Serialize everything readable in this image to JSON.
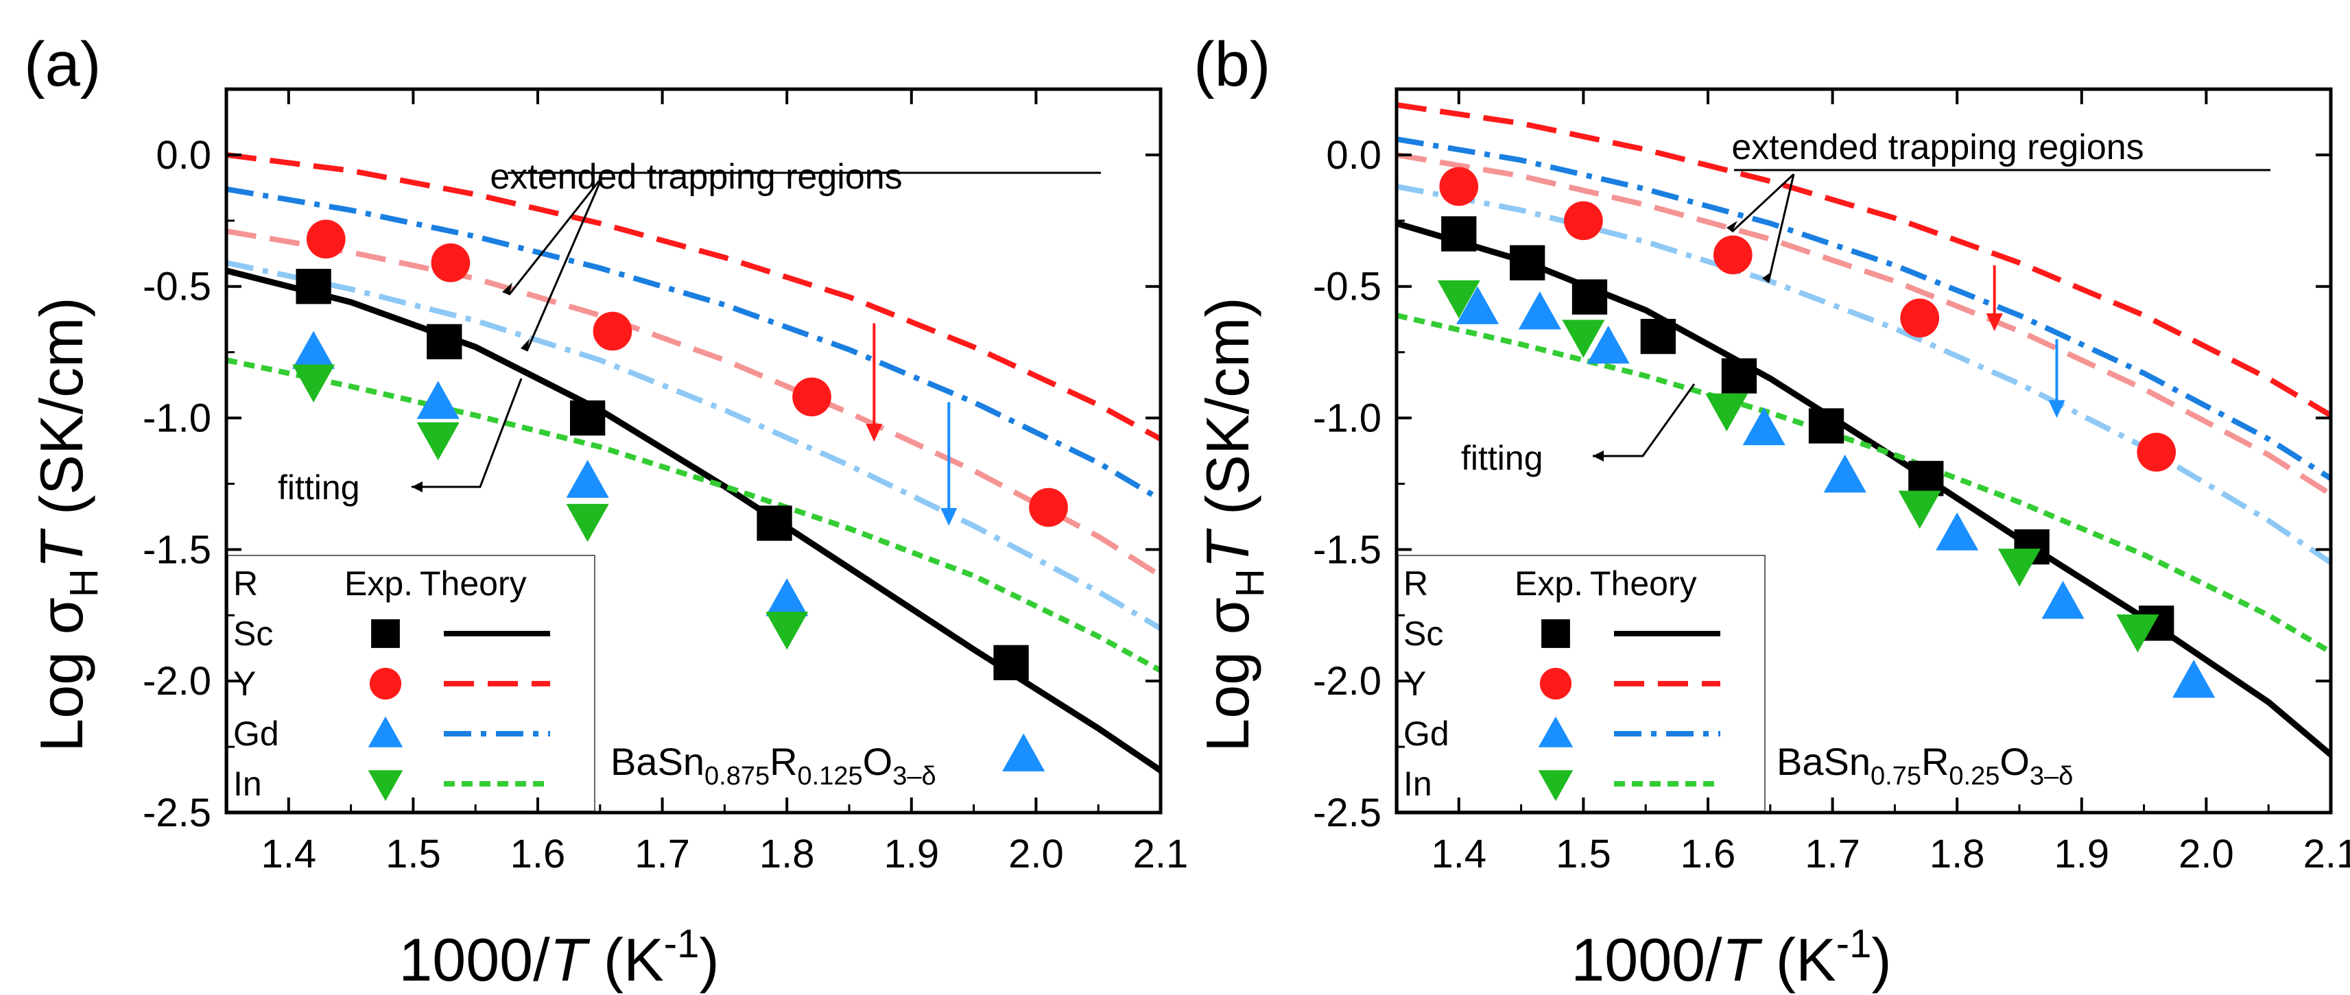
{
  "figure": {
    "ylabel_prefix": "Log σ",
    "ylabel_sub": "H",
    "ylabel_var": "T",
    "ylabel_unit": " (SK/cm)",
    "xlabel_prefix": "1000/",
    "xlabel_var": "T",
    "xlabel_unit": " (K",
    "xlabel_sup": "-1",
    "xlabel_close": ")",
    "legend_header": [
      "R",
      "Exp.",
      "Theory"
    ],
    "arrow_color_Y": "#ff1a1a",
    "arrow_color_Gd": "#1a8fff"
  },
  "chart_data": [
    {
      "type": "scatter",
      "panel_label": "(a)",
      "xlim": [
        1.35,
        2.1
      ],
      "ylim": [
        -2.5,
        0.25
      ],
      "xticks": [
        1.4,
        1.5,
        1.6,
        1.7,
        1.8,
        1.9,
        2.0,
        2.1
      ],
      "xtick_labels": [
        "1.4",
        "1.5",
        "1.6",
        "1.7",
        "1.8",
        "1.9",
        "2.0",
        "2.1"
      ],
      "yticks": [
        0.0,
        -0.5,
        -1.0,
        -1.5,
        -2.0,
        -2.5
      ],
      "ytick_labels": [
        "0.0",
        "-0.5",
        "-1.0",
        "-1.5",
        "-2.0",
        "-2.5"
      ],
      "formula": {
        "base": "BaSn",
        "sub1": "0.875",
        "mid": "R",
        "sub2": "0.125",
        "tail": "O",
        "sub3": "3–δ"
      },
      "annotations": {
        "trap": "extended trapping regions",
        "fit": "fitting"
      },
      "series": [
        {
          "name": "Sc",
          "color": "#000000",
          "marker": "square",
          "exp": [
            [
              1.42,
              -0.5
            ],
            [
              1.525,
              -0.71
            ],
            [
              1.64,
              -1.0
            ],
            [
              1.79,
              -1.4
            ],
            [
              1.98,
              -1.93
            ]
          ],
          "theory": {
            "style": "solid",
            "points": [
              [
                1.35,
                -0.44
              ],
              [
                1.45,
                -0.56
              ],
              [
                1.55,
                -0.73
              ],
              [
                1.65,
                -0.97
              ],
              [
                1.75,
                -1.26
              ],
              [
                1.85,
                -1.57
              ],
              [
                1.95,
                -1.88
              ],
              [
                2.05,
                -2.18
              ],
              [
                2.1,
                -2.34
              ]
            ]
          },
          "trap": {
            "style": "none",
            "points": []
          }
        },
        {
          "name": "Y",
          "color": "#ff1a1a",
          "marker": "circle",
          "exp": [
            [
              1.43,
              -0.32
            ],
            [
              1.53,
              -0.41
            ],
            [
              1.66,
              -0.67
            ],
            [
              1.82,
              -0.92
            ],
            [
              2.01,
              -1.34
            ]
          ],
          "theory": {
            "style": "dash",
            "color": "#ff1a1a",
            "points": [
              [
                1.35,
                0.0
              ],
              [
                1.45,
                -0.06
              ],
              [
                1.55,
                -0.15
              ],
              [
                1.65,
                -0.26
              ],
              [
                1.75,
                -0.39
              ],
              [
                1.85,
                -0.54
              ],
              [
                1.95,
                -0.73
              ],
              [
                2.05,
                -0.95
              ],
              [
                2.1,
                -1.08
              ]
            ]
          },
          "trap": {
            "style": "dash",
            "color": "#f59494",
            "points": [
              [
                1.35,
                -0.29
              ],
              [
                1.45,
                -0.37
              ],
              [
                1.55,
                -0.47
              ],
              [
                1.65,
                -0.61
              ],
              [
                1.75,
                -0.78
              ],
              [
                1.85,
                -0.98
              ],
              [
                1.95,
                -1.2
              ],
              [
                2.05,
                -1.45
              ],
              [
                2.1,
                -1.6
              ]
            ]
          }
        },
        {
          "name": "Gd",
          "color": "#1a8fff",
          "marker": "triangle-up",
          "exp": [
            [
              1.42,
              -0.75
            ],
            [
              1.52,
              -0.94
            ],
            [
              1.64,
              -1.24
            ],
            [
              1.8,
              -1.69
            ],
            [
              1.99,
              -2.28
            ]
          ],
          "theory": {
            "style": "dashdot",
            "color": "#1a7fe0",
            "points": [
              [
                1.35,
                -0.13
              ],
              [
                1.45,
                -0.21
              ],
              [
                1.55,
                -0.31
              ],
              [
                1.65,
                -0.43
              ],
              [
                1.75,
                -0.57
              ],
              [
                1.85,
                -0.74
              ],
              [
                1.95,
                -0.94
              ],
              [
                2.05,
                -1.17
              ],
              [
                2.1,
                -1.31
              ]
            ]
          },
          "trap": {
            "style": "dashdot",
            "color": "#8ec8f5",
            "points": [
              [
                1.35,
                -0.41
              ],
              [
                1.45,
                -0.51
              ],
              [
                1.55,
                -0.63
              ],
              [
                1.65,
                -0.78
              ],
              [
                1.75,
                -0.97
              ],
              [
                1.85,
                -1.18
              ],
              [
                1.95,
                -1.41
              ],
              [
                2.05,
                -1.66
              ],
              [
                2.1,
                -1.8
              ]
            ]
          }
        },
        {
          "name": "In",
          "color": "#1fba1f",
          "marker": "triangle-down",
          "exp": [
            [
              1.42,
              -0.86
            ],
            [
              1.52,
              -1.08
            ],
            [
              1.64,
              -1.39
            ],
            [
              1.8,
              -1.8
            ]
          ],
          "theory": {
            "style": "dot",
            "color": "#33cc33",
            "points": [
              [
                1.35,
                -0.78
              ],
              [
                1.45,
                -0.88
              ],
              [
                1.55,
                -0.99
              ],
              [
                1.65,
                -1.11
              ],
              [
                1.75,
                -1.26
              ],
              [
                1.85,
                -1.42
              ],
              [
                1.95,
                -1.6
              ],
              [
                2.05,
                -1.83
              ],
              [
                2.1,
                -1.96
              ]
            ]
          },
          "trap": {
            "style": "none",
            "points": []
          }
        }
      ],
      "arrows": [
        {
          "series": "Y",
          "x": 1.87,
          "from": -0.64,
          "to": -1.09
        },
        {
          "series": "Gd",
          "x": 1.93,
          "from": -0.94,
          "to": -1.41
        }
      ]
    },
    {
      "type": "scatter",
      "panel_label": "(b)",
      "xlim": [
        1.35,
        2.1
      ],
      "ylim": [
        -2.5,
        0.25
      ],
      "xticks": [
        1.4,
        1.5,
        1.6,
        1.7,
        1.8,
        1.9,
        2.0,
        2.1
      ],
      "xtick_labels": [
        "1.4",
        "1.5",
        "1.6",
        "1.7",
        "1.8",
        "1.9",
        "2.0",
        "2.1"
      ],
      "yticks": [
        0.0,
        -0.5,
        -1.0,
        -1.5,
        -2.0,
        -2.5
      ],
      "ytick_labels": [
        "0.0",
        "-0.5",
        "-1.0",
        "-1.5",
        "-2.0",
        "-2.5"
      ],
      "formula": {
        "base": "BaSn",
        "sub1": "0.75",
        "mid": "R",
        "sub2": "0.25",
        "tail": "O",
        "sub3": "3–δ"
      },
      "annotations": {
        "trap": "extended trapping regions",
        "fit": "fitting"
      },
      "series": [
        {
          "name": "Sc",
          "color": "#000000",
          "marker": "square",
          "exp": [
            [
              1.4,
              -0.3
            ],
            [
              1.455,
              -0.41
            ],
            [
              1.505,
              -0.54
            ],
            [
              1.56,
              -0.69
            ],
            [
              1.625,
              -0.84
            ],
            [
              1.695,
              -1.03
            ],
            [
              1.775,
              -1.23
            ],
            [
              1.86,
              -1.49
            ],
            [
              1.96,
              -1.78
            ]
          ],
          "theory": {
            "style": "solid",
            "points": [
              [
                1.35,
                -0.26
              ],
              [
                1.45,
                -0.4
              ],
              [
                1.55,
                -0.59
              ],
              [
                1.65,
                -0.85
              ],
              [
                1.75,
                -1.15
              ],
              [
                1.85,
                -1.46
              ],
              [
                1.95,
                -1.76
              ],
              [
                2.05,
                -2.08
              ],
              [
                2.1,
                -2.28
              ]
            ]
          },
          "trap": {
            "style": "none",
            "points": []
          }
        },
        {
          "name": "Y",
          "color": "#ff1a1a",
          "marker": "circle",
          "exp": [
            [
              1.4,
              -0.12
            ],
            [
              1.5,
              -0.25
            ],
            [
              1.62,
              -0.38
            ],
            [
              1.77,
              -0.62
            ],
            [
              1.96,
              -1.13
            ]
          ],
          "theory": {
            "style": "dash",
            "color": "#ff1a1a",
            "points": [
              [
                1.35,
                0.19
              ],
              [
                1.45,
                0.12
              ],
              [
                1.55,
                0.02
              ],
              [
                1.65,
                -0.1
              ],
              [
                1.75,
                -0.24
              ],
              [
                1.85,
                -0.41
              ],
              [
                1.95,
                -0.61
              ],
              [
                2.05,
                -0.85
              ],
              [
                2.1,
                -0.99
              ]
            ]
          },
          "trap": {
            "style": "dash",
            "color": "#f59494",
            "points": [
              [
                1.35,
                0.0
              ],
              [
                1.45,
                -0.08
              ],
              [
                1.55,
                -0.19
              ],
              [
                1.65,
                -0.32
              ],
              [
                1.75,
                -0.48
              ],
              [
                1.85,
                -0.67
              ],
              [
                1.95,
                -0.89
              ],
              [
                2.05,
                -1.14
              ],
              [
                2.1,
                -1.29
              ]
            ]
          }
        },
        {
          "name": "Gd",
          "color": "#1a8fff",
          "marker": "triangle-up",
          "exp": [
            [
              1.415,
              -0.58
            ],
            [
              1.465,
              -0.6
            ],
            [
              1.52,
              -0.73
            ],
            [
              1.645,
              -1.04
            ],
            [
              1.71,
              -1.22
            ],
            [
              1.8,
              -1.44
            ],
            [
              1.885,
              -1.7
            ],
            [
              1.99,
              -2.0
            ]
          ],
          "theory": {
            "style": "dashdot",
            "color": "#1a7fe0",
            "points": [
              [
                1.35,
                0.06
              ],
              [
                1.45,
                -0.02
              ],
              [
                1.55,
                -0.13
              ],
              [
                1.65,
                -0.26
              ],
              [
                1.75,
                -0.42
              ],
              [
                1.85,
                -0.61
              ],
              [
                1.95,
                -0.83
              ],
              [
                2.05,
                -1.08
              ],
              [
                2.1,
                -1.23
              ]
            ]
          },
          "trap": {
            "style": "dashdot",
            "color": "#8ec8f5",
            "points": [
              [
                1.35,
                -0.12
              ],
              [
                1.45,
                -0.21
              ],
              [
                1.55,
                -0.33
              ],
              [
                1.65,
                -0.48
              ],
              [
                1.75,
                -0.66
              ],
              [
                1.85,
                -0.87
              ],
              [
                1.95,
                -1.11
              ],
              [
                2.05,
                -1.39
              ],
              [
                2.1,
                -1.55
              ]
            ]
          }
        },
        {
          "name": "In",
          "color": "#1fba1f",
          "marker": "triangle-down",
          "exp": [
            [
              1.4,
              -0.54
            ],
            [
              1.5,
              -0.69
            ],
            [
              1.615,
              -0.97
            ],
            [
              1.77,
              -1.34
            ],
            [
              1.85,
              -1.56
            ],
            [
              1.945,
              -1.81
            ]
          ],
          "theory": {
            "style": "dot",
            "color": "#33cc33",
            "points": [
              [
                1.35,
                -0.61
              ],
              [
                1.45,
                -0.72
              ],
              [
                1.55,
                -0.84
              ],
              [
                1.65,
                -0.98
              ],
              [
                1.75,
                -1.14
              ],
              [
                1.85,
                -1.32
              ],
              [
                1.95,
                -1.52
              ],
              [
                2.05,
                -1.75
              ],
              [
                2.1,
                -1.89
              ]
            ]
          },
          "trap": {
            "style": "none",
            "points": []
          }
        }
      ],
      "arrows": [
        {
          "series": "Y",
          "x": 1.83,
          "from": -0.42,
          "to": -0.67
        },
        {
          "series": "Gd",
          "x": 1.88,
          "from": -0.7,
          "to": -1.0
        }
      ]
    }
  ]
}
